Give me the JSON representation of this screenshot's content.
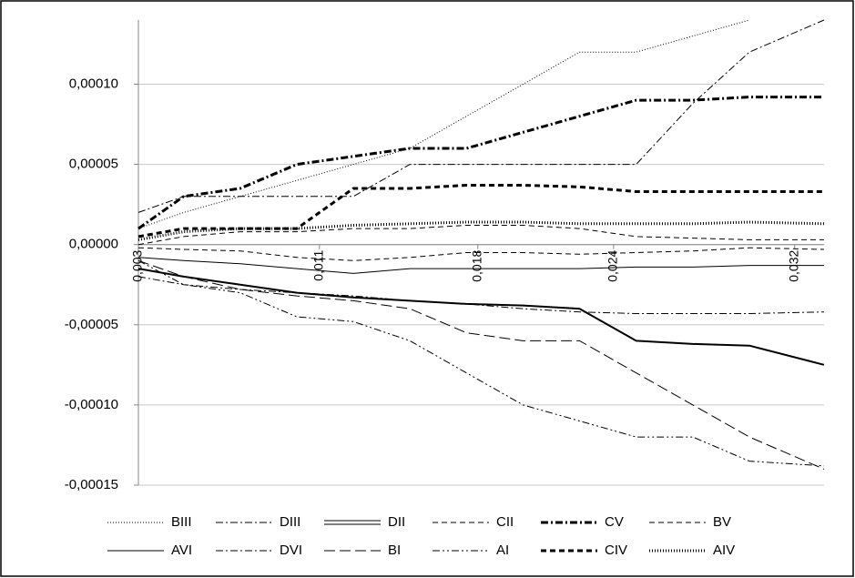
{
  "chart_data": {
    "type": "line",
    "x": [
      0.003,
      0.005,
      0.0075,
      0.01,
      0.0125,
      0.015,
      0.0175,
      0.02,
      0.0225,
      0.025,
      0.0275,
      0.03,
      0.0333
    ],
    "xlim": [
      0.003,
      0.0333
    ],
    "xticks": [
      {
        "value": 0.003,
        "label": "0,003"
      },
      {
        "value": 0.011,
        "label": "0,011"
      },
      {
        "value": 0.018,
        "label": "0,018"
      },
      {
        "value": 0.024,
        "label": "0,024"
      },
      {
        "value": 0.032,
        "label": "0,032"
      }
    ],
    "ylim": [
      -0.00015,
      0.00014
    ],
    "yticks": [
      {
        "value": -0.00015,
        "label": "-0,00015"
      },
      {
        "value": -0.0001,
        "label": "-0,00010"
      },
      {
        "value": -5e-05,
        "label": "-0,00005"
      },
      {
        "value": 0,
        "label": "0,00000"
      },
      {
        "value": 5e-05,
        "label": "0,00005"
      },
      {
        "value": 0.0001,
        "label": "0,00010"
      }
    ],
    "grid": true,
    "legend": "bottom",
    "series": [
      {
        "name": "BIII",
        "color": "#000000",
        "line_style": "dotted",
        "line_width": 1,
        "values": [
          1e-05,
          2e-05,
          3e-05,
          4e-05,
          5e-05,
          6e-05,
          8e-05,
          0.0001,
          0.00012,
          0.00012,
          0.00013,
          0.00014,
          null
        ]
      },
      {
        "name": "DIII",
        "color": "#000000",
        "line_style": "dash-dot",
        "line_width": 1,
        "values": [
          2e-05,
          3e-05,
          3e-05,
          3e-05,
          3e-05,
          5e-05,
          5e-05,
          5e-05,
          5e-05,
          5e-05,
          8.8e-05,
          0.00012,
          0.00014
        ]
      },
      {
        "name": "DII",
        "color": "#000000",
        "line_style": "double",
        "line_width": 2,
        "values": [
          -1.5e-05,
          -2e-05,
          -2.5e-05,
          -3e-05,
          -3.3e-05,
          -3.5e-05,
          -3.7e-05,
          -3.8e-05,
          -4e-05,
          -6e-05,
          -6.2e-05,
          -6.3e-05,
          -7.5e-05
        ]
      },
      {
        "name": "CII",
        "color": "#000000",
        "line_style": "dashed",
        "line_width": 1,
        "values": [
          0,
          5e-06,
          8e-06,
          8e-06,
          1e-05,
          1e-05,
          1.2e-05,
          1.2e-05,
          1e-05,
          5e-06,
          4e-06,
          3e-06,
          3e-06
        ]
      },
      {
        "name": "CV",
        "color": "#000000",
        "line_style": "dash-dot",
        "line_width": 3,
        "values": [
          1e-05,
          3e-05,
          3.5e-05,
          5e-05,
          5.5e-05,
          6e-05,
          6e-05,
          7e-05,
          8e-05,
          9e-05,
          9e-05,
          9.2e-05,
          9.2e-05
        ]
      },
      {
        "name": "BV",
        "color": "#000000",
        "line_style": "dashed",
        "line_width": 1,
        "values": [
          -2e-06,
          -3e-06,
          -4e-06,
          -8e-06,
          -1e-05,
          -8e-06,
          -5e-06,
          -5e-06,
          -6e-06,
          -5e-06,
          -4e-06,
          -2e-06,
          -3e-06
        ]
      },
      {
        "name": "AVI",
        "color": "#000000",
        "line_style": "solid",
        "line_width": 1,
        "values": [
          -8e-06,
          -1e-05,
          -1.2e-05,
          -1.5e-05,
          -1.8e-05,
          -1.5e-05,
          -1.5e-05,
          -1.5e-05,
          -1.5e-05,
          -1.4e-05,
          -1.4e-05,
          -1.3e-05,
          -1.3e-05
        ]
      },
      {
        "name": "DVI",
        "color": "#000000",
        "line_style": "dash-dot",
        "line_width": 1,
        "values": [
          -2e-05,
          -2.5e-05,
          -2.8e-05,
          -3e-05,
          -3.2e-05,
          -3.5e-05,
          -3.7e-05,
          -4e-05,
          -4.2e-05,
          -4.3e-05,
          -4.3e-05,
          -4.3e-05,
          -4.2e-05
        ]
      },
      {
        "name": "BI",
        "color": "#000000",
        "line_style": "long-dash",
        "line_width": 1,
        "values": [
          -1e-05,
          -2e-05,
          -2.8e-05,
          -3.2e-05,
          -3.5e-05,
          -4e-05,
          -5.5e-05,
          -6e-05,
          -6e-05,
          -8e-05,
          -0.0001,
          -0.00012,
          -0.00014
        ]
      },
      {
        "name": "AI",
        "color": "#000000",
        "line_style": "dash-dot-dot",
        "line_width": 1,
        "values": [
          -1e-05,
          -2.5e-05,
          -3e-05,
          -4.5e-05,
          -4.8e-05,
          -6e-05,
          -8e-05,
          -0.0001,
          -0.00011,
          -0.00012,
          -0.00012,
          -0.000135,
          -0.000138
        ]
      },
      {
        "name": "CIV",
        "color": "#000000",
        "line_style": "dashed",
        "line_width": 3,
        "values": [
          5e-06,
          1e-05,
          1e-05,
          1e-05,
          3.5e-05,
          3.5e-05,
          3.7e-05,
          3.7e-05,
          3.6e-05,
          3.3e-05,
          3.3e-05,
          3.3e-05,
          3.3e-05
        ]
      },
      {
        "name": "AIV",
        "color": "#000000",
        "line_style": "dotted",
        "line_width": 3,
        "values": [
          3e-06,
          8e-06,
          1e-05,
          1e-05,
          1.2e-05,
          1.3e-05,
          1.4e-05,
          1.4e-05,
          1.3e-05,
          1.3e-05,
          1.3e-05,
          1.4e-05,
          1.3e-05
        ]
      }
    ]
  }
}
